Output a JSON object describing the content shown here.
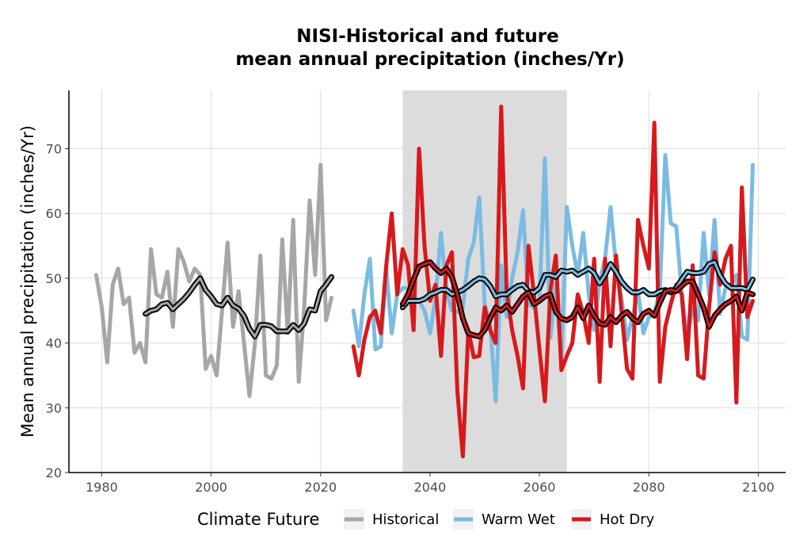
{
  "chart_data": {
    "type": "line",
    "title_line1": "NISI-Historical and future",
    "title_line2": "mean annual precipitation (inches/Yr)",
    "xlabel": "",
    "ylabel": "Mean annual precipitation (inches/Yr)",
    "xlim": [
      1974,
      2105
    ],
    "ylim": [
      20,
      79
    ],
    "x_ticks": [
      1980,
      2000,
      2020,
      2040,
      2060,
      2080,
      2100
    ],
    "y_ticks": [
      20,
      30,
      40,
      50,
      60,
      70
    ],
    "grid": true,
    "shaded_period": [
      2035,
      2065
    ],
    "legend": {
      "title": "Climate Future",
      "position": "bottom"
    },
    "colors": {
      "historical": "#a6a6a6",
      "warm_wet": "#7bbbe3",
      "hot_dry": "#d7191c",
      "smooth_outline": "#000000"
    },
    "series": [
      {
        "name": "Historical",
        "color": "#a6a6a6",
        "x": [
          1979,
          1980,
          1981,
          1982,
          1983,
          1984,
          1985,
          1986,
          1987,
          1988,
          1989,
          1990,
          1991,
          1992,
          1993,
          1994,
          1995,
          1996,
          1997,
          1998,
          1999,
          2000,
          2001,
          2002,
          2003,
          2004,
          2005,
          2006,
          2007,
          2008,
          2009,
          2010,
          2011,
          2012,
          2013,
          2014,
          2015,
          2016,
          2017,
          2018,
          2019,
          2020,
          2021,
          2022
        ],
        "values": [
          50.5,
          45.5,
          37.0,
          49.0,
          51.5,
          46.0,
          47.0,
          38.5,
          40.0,
          37.0,
          54.5,
          47.5,
          47.0,
          51.0,
          42.5,
          54.5,
          52.5,
          49.5,
          51.5,
          50.5,
          36.0,
          38.0,
          35.0,
          45.0,
          55.5,
          42.5,
          48.0,
          40.0,
          31.8,
          40.0,
          53.5,
          35.0,
          34.5,
          36.5,
          56.0,
          41.5,
          59.0,
          34.0,
          45.5,
          62.0,
          50.5,
          67.5,
          43.5,
          47.0
        ],
        "smooth_x": [
          1988,
          1989,
          1990,
          1991,
          1992,
          1993,
          1994,
          1995,
          1996,
          1997,
          1998,
          1999,
          2000,
          2001,
          2002,
          2003,
          2004,
          2005,
          2006,
          2007,
          2008,
          2009,
          2010,
          2011,
          2012,
          2013,
          2014,
          2015,
          2016,
          2017,
          2018,
          2019,
          2020,
          2021,
          2022
        ],
        "smooth": [
          44.5,
          45.0,
          45.2,
          46.0,
          46.2,
          45.2,
          46.0,
          46.8,
          47.8,
          49.0,
          50.0,
          48.2,
          47.2,
          46.0,
          45.8,
          47.0,
          45.8,
          45.3,
          44.2,
          42.2,
          41.0,
          42.8,
          42.8,
          42.6,
          41.8,
          41.8,
          41.8,
          42.8,
          42.0,
          43.0,
          45.2,
          45.0,
          48.0,
          49.0,
          50.2
        ]
      },
      {
        "name": "Warm Wet",
        "color": "#7bbbe3",
        "x": [
          2026,
          2027,
          2028,
          2029,
          2030,
          2031,
          2032,
          2033,
          2034,
          2035,
          2036,
          2037,
          2038,
          2039,
          2040,
          2041,
          2042,
          2043,
          2044,
          2045,
          2046,
          2047,
          2048,
          2049,
          2050,
          2051,
          2052,
          2053,
          2054,
          2055,
          2056,
          2057,
          2058,
          2059,
          2060,
          2061,
          2062,
          2063,
          2064,
          2065,
          2066,
          2067,
          2068,
          2069,
          2070,
          2071,
          2072,
          2073,
          2074,
          2075,
          2076,
          2077,
          2078,
          2079,
          2080,
          2081,
          2082,
          2083,
          2084,
          2085,
          2086,
          2087,
          2088,
          2089,
          2090,
          2091,
          2092,
          2093,
          2094,
          2095,
          2096,
          2097,
          2098,
          2099
        ],
        "values": [
          45.0,
          39.5,
          47.5,
          53.0,
          39.0,
          39.5,
          51.5,
          41.5,
          47.5,
          48.5,
          48.5,
          47.0,
          46.5,
          45.0,
          41.5,
          47.0,
          57.0,
          48.0,
          45.0,
          44.8,
          45.5,
          53.0,
          55.5,
          62.5,
          46.0,
          43.0,
          31.0,
          52.0,
          44.0,
          50.0,
          54.0,
          60.5,
          46.0,
          45.5,
          46.5,
          68.5,
          40.8,
          49.0,
          37.0,
          61.0,
          55.0,
          50.5,
          57.0,
          47.5,
          42.0,
          49.5,
          53.0,
          61.0,
          52.0,
          47.0,
          40.5,
          44.0,
          48.0,
          41.5,
          44.0,
          44.5,
          48.0,
          69.0,
          58.5,
          58.0,
          48.0,
          40.8,
          45.5,
          43.5,
          57.0,
          47.5,
          59.0,
          44.5,
          48.5,
          49.0,
          50.5,
          41.0,
          40.5,
          67.5
        ],
        "smooth_x": [
          2035,
          2036,
          2037,
          2038,
          2039,
          2040,
          2041,
          2042,
          2043,
          2044,
          2045,
          2046,
          2047,
          2048,
          2049,
          2050,
          2051,
          2052,
          2053,
          2054,
          2055,
          2056,
          2057,
          2058,
          2059,
          2060,
          2061,
          2062,
          2063,
          2064,
          2065,
          2066,
          2067,
          2068,
          2069,
          2070,
          2071,
          2072,
          2073,
          2074,
          2075,
          2076,
          2077,
          2078,
          2079,
          2080,
          2081,
          2082,
          2083,
          2084,
          2085,
          2086,
          2087,
          2088,
          2089,
          2090,
          2091,
          2092,
          2093,
          2094,
          2095,
          2096,
          2097,
          2098,
          2099
        ],
        "smooth": [
          45.5,
          46.5,
          46.5,
          46.5,
          46.8,
          47.5,
          47.8,
          48.2,
          48.2,
          47.5,
          47.8,
          48.2,
          48.8,
          49.5,
          50.0,
          49.8,
          48.8,
          47.2,
          47.5,
          47.5,
          48.2,
          48.8,
          49.0,
          48.0,
          47.8,
          48.5,
          50.5,
          50.5,
          50.2,
          51.2,
          51.0,
          51.2,
          50.5,
          51.0,
          51.5,
          50.8,
          49.2,
          50.5,
          52.2,
          51.0,
          49.5,
          48.5,
          47.8,
          47.8,
          48.2,
          47.5,
          47.5,
          48.0,
          48.2,
          47.8,
          48.5,
          49.8,
          51.0,
          50.8,
          50.8,
          51.0,
          52.2,
          52.5,
          50.5,
          49.2,
          48.5,
          48.5,
          48.5,
          48.2,
          49.8
        ]
      },
      {
        "name": "Hot Dry",
        "color": "#d7191c",
        "x": [
          2026,
          2027,
          2028,
          2029,
          2030,
          2031,
          2032,
          2033,
          2034,
          2035,
          2036,
          2037,
          2038,
          2039,
          2040,
          2041,
          2042,
          2043,
          2044,
          2045,
          2046,
          2047,
          2048,
          2049,
          2050,
          2051,
          2052,
          2053,
          2054,
          2055,
          2056,
          2057,
          2058,
          2059,
          2060,
          2061,
          2062,
          2063,
          2064,
          2065,
          2066,
          2067,
          2068,
          2069,
          2070,
          2071,
          2072,
          2073,
          2074,
          2075,
          2076,
          2077,
          2078,
          2079,
          2080,
          2081,
          2082,
          2083,
          2084,
          2085,
          2086,
          2087,
          2088,
          2089,
          2090,
          2091,
          2092,
          2093,
          2094,
          2095,
          2096,
          2097,
          2098,
          2099
        ],
        "values": [
          39.5,
          35.0,
          40.5,
          44.0,
          45.0,
          41.5,
          52.0,
          60.0,
          47.5,
          54.5,
          52.0,
          42.0,
          70.0,
          55.0,
          46.5,
          49.0,
          38.0,
          52.0,
          54.0,
          32.5,
          22.5,
          42.0,
          37.8,
          38.0,
          45.5,
          42.0,
          40.0,
          76.5,
          48.0,
          42.0,
          38.0,
          33.0,
          55.0,
          47.5,
          39.0,
          31.0,
          48.0,
          53.5,
          35.8,
          38.0,
          40.0,
          47.5,
          44.5,
          40.0,
          53.0,
          34.0,
          53.0,
          39.5,
          53.5,
          45.0,
          36.0,
          34.5,
          59.0,
          55.0,
          51.5,
          74.0,
          34.0,
          42.5,
          46.0,
          49.0,
          47.5,
          37.5,
          52.0,
          35.0,
          34.5,
          45.5,
          54.0,
          49.0,
          53.0,
          55.0,
          30.8,
          64.0,
          44.0,
          46.5
        ],
        "smooth_x": [
          2035,
          2036,
          2037,
          2038,
          2039,
          2040,
          2041,
          2042,
          2043,
          2044,
          2045,
          2046,
          2047,
          2048,
          2049,
          2050,
          2051,
          2052,
          2053,
          2054,
          2055,
          2056,
          2057,
          2058,
          2059,
          2060,
          2061,
          2062,
          2063,
          2064,
          2065,
          2066,
          2067,
          2068,
          2069,
          2070,
          2071,
          2072,
          2073,
          2074,
          2075,
          2076,
          2077,
          2078,
          2079,
          2080,
          2081,
          2082,
          2083,
          2084,
          2085,
          2086,
          2087,
          2088,
          2089,
          2090,
          2091,
          2092,
          2093,
          2094,
          2095,
          2096,
          2097,
          2098,
          2099
        ],
        "smooth": [
          46.0,
          47.5,
          49.8,
          51.8,
          52.2,
          52.5,
          51.5,
          50.8,
          51.5,
          50.2,
          47.5,
          43.8,
          41.5,
          41.2,
          41.0,
          42.0,
          43.8,
          45.5,
          45.0,
          45.8,
          44.8,
          46.0,
          47.2,
          47.8,
          46.0,
          46.5,
          47.2,
          47.5,
          44.8,
          43.8,
          43.5,
          44.0,
          45.5,
          43.8,
          45.8,
          44.2,
          43.0,
          42.8,
          44.0,
          43.2,
          44.2,
          44.8,
          43.8,
          43.2,
          44.5,
          45.0,
          44.2,
          46.2,
          48.0,
          48.2,
          48.0,
          48.8,
          49.5,
          49.5,
          47.5,
          45.5,
          42.5,
          44.2,
          45.2,
          46.0,
          46.5,
          47.2,
          45.0,
          47.8,
          47.5
        ]
      }
    ]
  }
}
